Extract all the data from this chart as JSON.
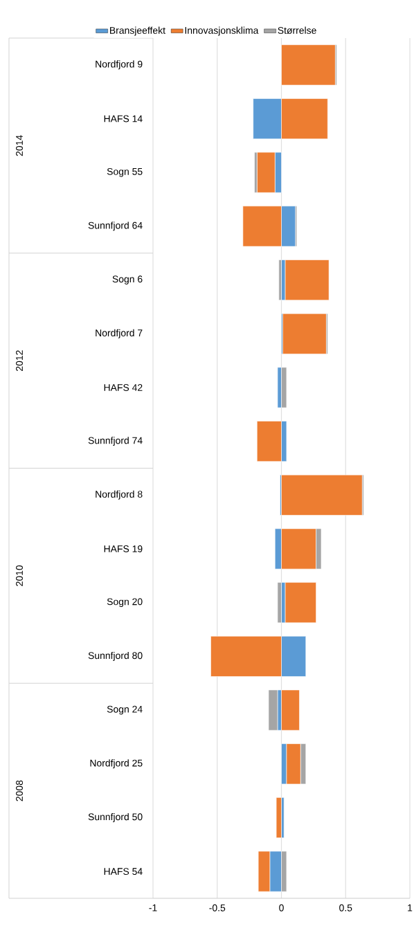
{
  "chart_data": {
    "type": "bar",
    "orientation": "horizontal",
    "stacked": true,
    "categories": [
      "Nordfjord 9",
      "HAFS 14",
      "Sogn 55",
      "Sunnfjord 64",
      "Sogn 6",
      "Nordfjord 7",
      "HAFS 42",
      "Sunnfjord 74",
      "Nordfjord 8",
      "HAFS 19",
      "Sogn 20",
      "Sunnfjord 80",
      "Sogn 24",
      "Nordfjord 25",
      "Sunnfjord 50",
      "HAFS 54"
    ],
    "series": [
      {
        "name": "Bransjeeffekt",
        "color": "#5b9bd5",
        "values": [
          0,
          -0.22,
          -0.05,
          0.11,
          0.03,
          0.01,
          -0.03,
          0.04,
          -0.01,
          -0.05,
          0.03,
          0.19,
          -0.03,
          0.04,
          0.02,
          -0.09
        ]
      },
      {
        "name": "Innovasjonsklima",
        "color": "#ed7d31",
        "values": [
          0.42,
          0.36,
          -0.14,
          -0.3,
          0.34,
          0.34,
          0,
          -0.19,
          0.63,
          0.27,
          0.24,
          -0.55,
          0.14,
          0.11,
          -0.04,
          -0.09
        ]
      },
      {
        "name": "Størrelse",
        "color": "#a5a5a5",
        "values": [
          0.01,
          0,
          -0.02,
          0.01,
          -0.02,
          0.01,
          0.04,
          0,
          0.01,
          0.04,
          -0.03,
          0,
          -0.07,
          0.04,
          0,
          0.04
        ]
      }
    ],
    "annotations": [
      "2014",
      "2012",
      "2010",
      "2008"
    ],
    "xlim": [
      -1,
      1
    ],
    "xticks": [
      -1,
      -0.5,
      0,
      0.5,
      1
    ],
    "grid": "x",
    "legend": "top"
  }
}
